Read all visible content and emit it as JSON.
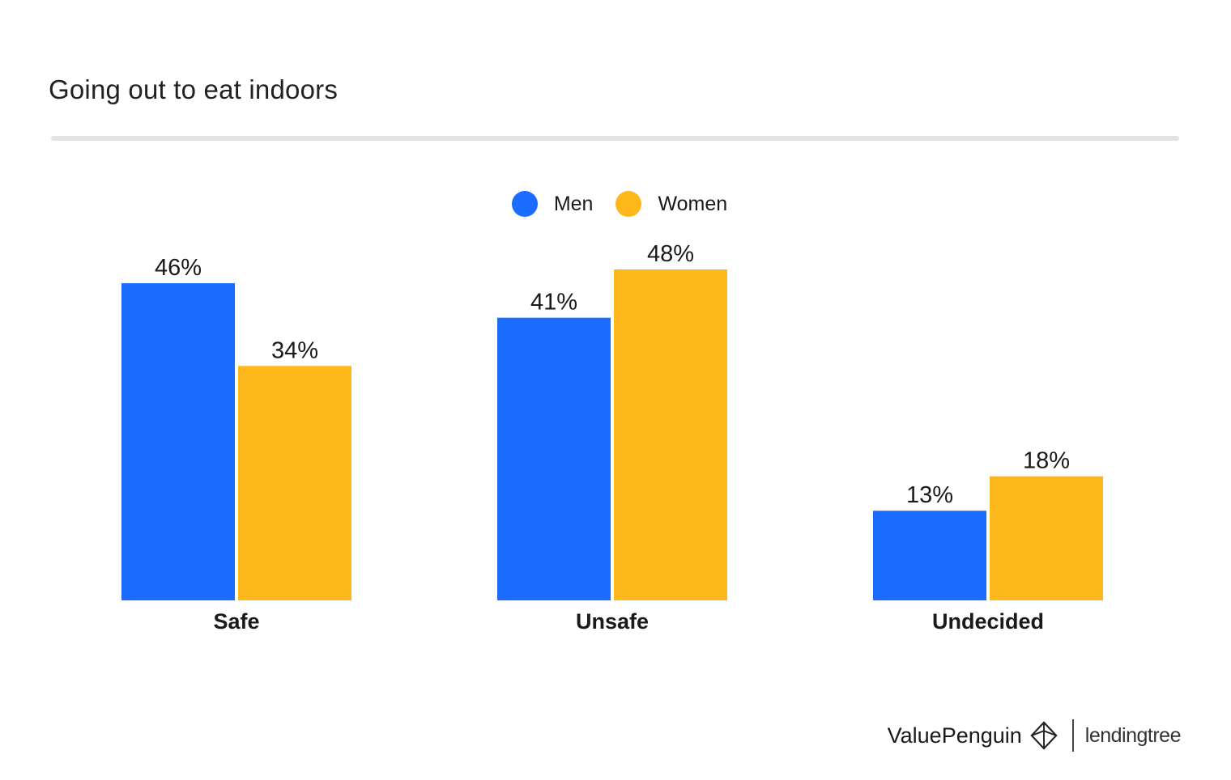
{
  "title": "Going out to eat indoors",
  "legend": [
    {
      "label": "Men",
      "color": "#1a6dff"
    },
    {
      "label": "Women",
      "color": "#ffb81c"
    }
  ],
  "chart_data": {
    "type": "bar",
    "categories": [
      "Safe",
      "Unsafe",
      "Undecided"
    ],
    "series": [
      {
        "name": "Men",
        "values": [
          46,
          41,
          13
        ],
        "labels": [
          "46%",
          "41%",
          "13%"
        ],
        "color": "#1a6dff"
      },
      {
        "name": "Women",
        "values": [
          34,
          48,
          18
        ],
        "labels": [
          "34%",
          "48%",
          "18%"
        ],
        "color": "#ffb81c"
      }
    ],
    "title": "Going out to eat indoors",
    "ylim": [
      0,
      48
    ],
    "grid": false,
    "legend_position": "top-center"
  },
  "footer": {
    "brand_primary": "ValuePenguin",
    "brand_secondary": "lendingtree",
    "brand_icon": "penguin-logo-icon"
  }
}
